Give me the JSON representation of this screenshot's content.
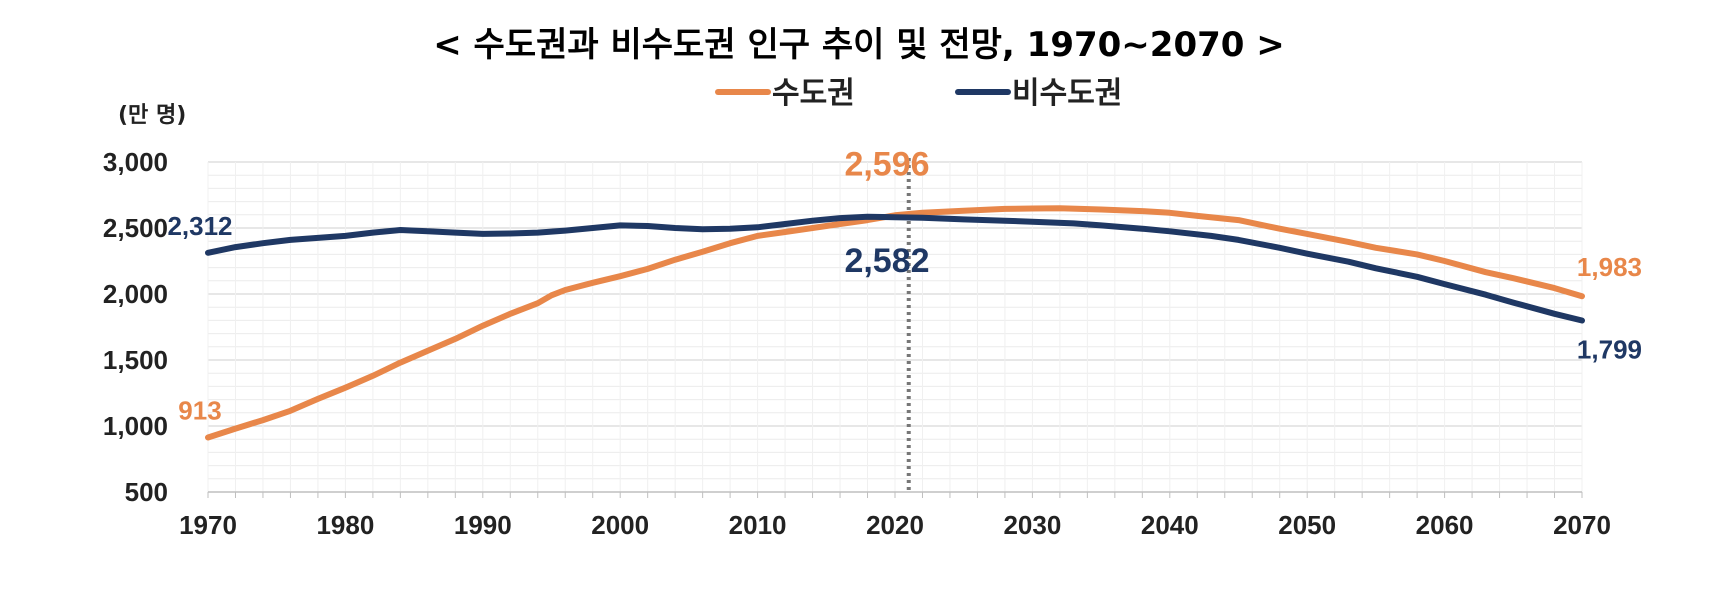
{
  "chart_data": {
    "type": "line",
    "title": "< 수도권과 비수도권 인구 추이 및 전망, 1970~2070 >",
    "ylabel": "(만 명)",
    "xlabel": "",
    "xlim": [
      1970,
      2070
    ],
    "ylim": [
      500,
      3000
    ],
    "x_ticks": [
      "1970",
      "1980",
      "1990",
      "2000",
      "2010",
      "2020",
      "2030",
      "2040",
      "2050",
      "2060",
      "2070"
    ],
    "y_ticks": [
      "500",
      "1,000",
      "1,500",
      "2,000",
      "2,500",
      "3,000"
    ],
    "grid": true,
    "legend_position": "top-center",
    "reference_line": {
      "x": 2021,
      "style": "dotted"
    },
    "colors": {
      "capital": "#E8874A",
      "noncapital": "#1F3864",
      "reference": "#777777",
      "grid": "#d9d9d9"
    },
    "series": [
      {
        "name": "수도권",
        "key": "capital",
        "points": [
          [
            1970,
            913
          ],
          [
            1972,
            980
          ],
          [
            1974,
            1045
          ],
          [
            1976,
            1115
          ],
          [
            1978,
            1205
          ],
          [
            1980,
            1290
          ],
          [
            1982,
            1380
          ],
          [
            1984,
            1480
          ],
          [
            1986,
            1570
          ],
          [
            1988,
            1660
          ],
          [
            1990,
            1760
          ],
          [
            1992,
            1850
          ],
          [
            1994,
            1930
          ],
          [
            1995,
            1990
          ],
          [
            1996,
            2030
          ],
          [
            1998,
            2085
          ],
          [
            2000,
            2135
          ],
          [
            2002,
            2190
          ],
          [
            2004,
            2260
          ],
          [
            2006,
            2320
          ],
          [
            2008,
            2385
          ],
          [
            2010,
            2440
          ],
          [
            2012,
            2470
          ],
          [
            2014,
            2500
          ],
          [
            2016,
            2530
          ],
          [
            2018,
            2560
          ],
          [
            2020,
            2596
          ],
          [
            2022,
            2615
          ],
          [
            2025,
            2630
          ],
          [
            2028,
            2645
          ],
          [
            2030,
            2648
          ],
          [
            2032,
            2650
          ],
          [
            2035,
            2640
          ],
          [
            2038,
            2628
          ],
          [
            2040,
            2615
          ],
          [
            2042,
            2592
          ],
          [
            2045,
            2560
          ],
          [
            2048,
            2495
          ],
          [
            2050,
            2455
          ],
          [
            2053,
            2395
          ],
          [
            2055,
            2350
          ],
          [
            2058,
            2300
          ],
          [
            2060,
            2250
          ],
          [
            2063,
            2165
          ],
          [
            2065,
            2120
          ],
          [
            2068,
            2045
          ],
          [
            2070,
            1983
          ]
        ],
        "labels": [
          {
            "x": 1970,
            "value": 913,
            "text": "913",
            "position": "above"
          },
          {
            "x": 2020,
            "value": 2596,
            "text": "2,596",
            "position": "above",
            "emphasis": true
          },
          {
            "x": 2070,
            "value": 1983,
            "text": "1,983",
            "position": "above"
          }
        ]
      },
      {
        "name": "비수도권",
        "key": "noncapital",
        "points": [
          [
            1970,
            2312
          ],
          [
            1972,
            2355
          ],
          [
            1974,
            2385
          ],
          [
            1976,
            2410
          ],
          [
            1978,
            2425
          ],
          [
            1980,
            2440
          ],
          [
            1982,
            2465
          ],
          [
            1984,
            2485
          ],
          [
            1986,
            2475
          ],
          [
            1988,
            2465
          ],
          [
            1990,
            2455
          ],
          [
            1992,
            2458
          ],
          [
            1994,
            2465
          ],
          [
            1996,
            2480
          ],
          [
            1998,
            2500
          ],
          [
            2000,
            2520
          ],
          [
            2002,
            2515
          ],
          [
            2004,
            2500
          ],
          [
            2006,
            2490
          ],
          [
            2008,
            2495
          ],
          [
            2010,
            2505
          ],
          [
            2012,
            2530
          ],
          [
            2014,
            2555
          ],
          [
            2016,
            2575
          ],
          [
            2018,
            2585
          ],
          [
            2020,
            2582
          ],
          [
            2022,
            2578
          ],
          [
            2025,
            2565
          ],
          [
            2028,
            2555
          ],
          [
            2030,
            2548
          ],
          [
            2033,
            2535
          ],
          [
            2035,
            2520
          ],
          [
            2038,
            2495
          ],
          [
            2040,
            2475
          ],
          [
            2043,
            2440
          ],
          [
            2045,
            2410
          ],
          [
            2048,
            2350
          ],
          [
            2050,
            2305
          ],
          [
            2053,
            2245
          ],
          [
            2055,
            2195
          ],
          [
            2058,
            2130
          ],
          [
            2060,
            2075
          ],
          [
            2063,
            1995
          ],
          [
            2065,
            1935
          ],
          [
            2068,
            1850
          ],
          [
            2070,
            1799
          ]
        ],
        "labels": [
          {
            "x": 1970,
            "value": 2312,
            "text": "2,312",
            "position": "above"
          },
          {
            "x": 2020,
            "value": 2582,
            "text": "2,582",
            "position": "below",
            "emphasis": true
          },
          {
            "x": 2070,
            "value": 1799,
            "text": "1,799",
            "position": "below"
          }
        ]
      }
    ]
  }
}
